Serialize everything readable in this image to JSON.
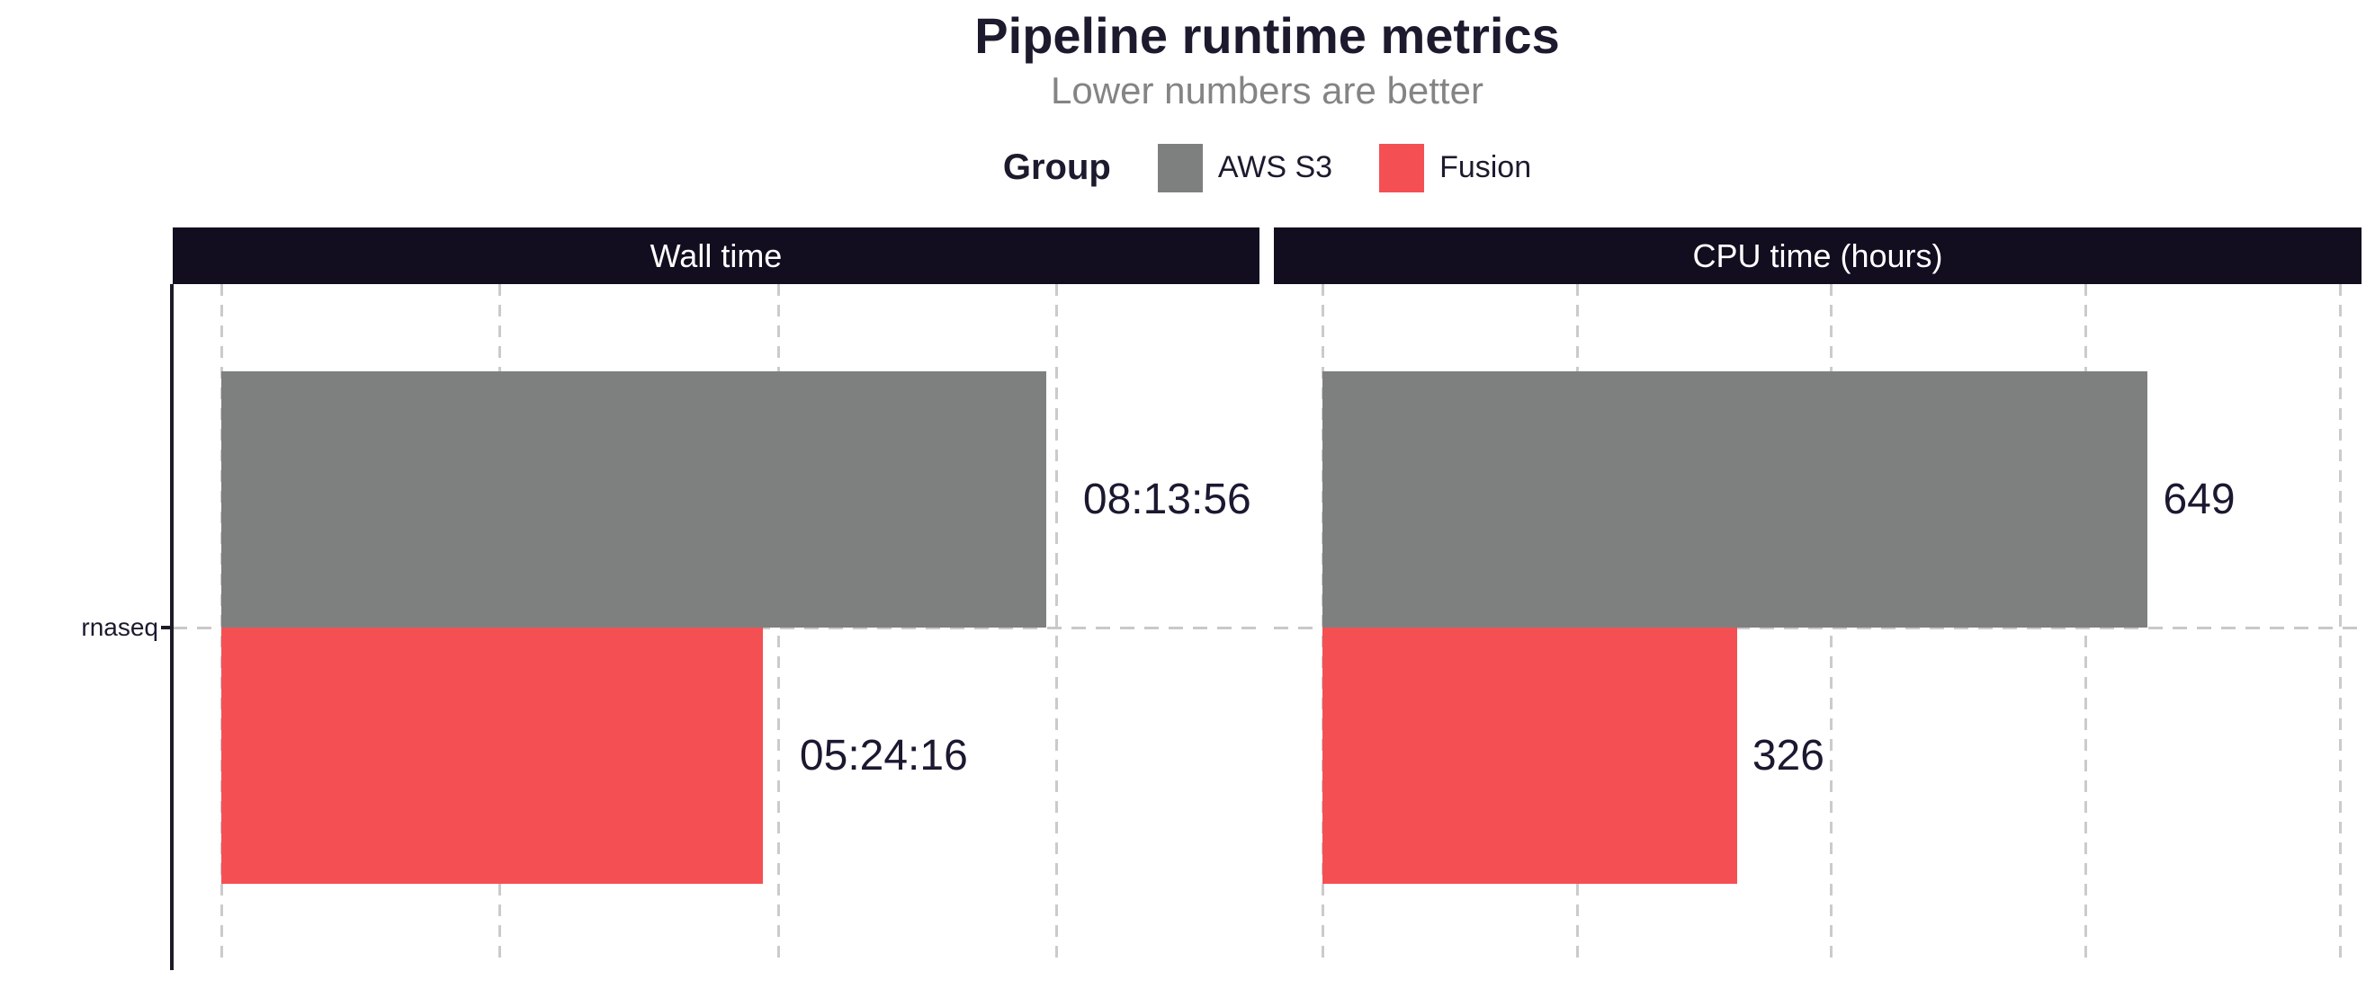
{
  "title": "Pipeline runtime metrics",
  "subtitle": "Lower numbers are better",
  "legend": {
    "title": "Group",
    "items": [
      {
        "label": "AWS S3",
        "color": "#7E807F"
      },
      {
        "label": "Fusion",
        "color": "#F45053"
      }
    ]
  },
  "colors": {
    "aws_s3_bar": "#7E807F",
    "fusion_bar": "#F45053",
    "panel_header_bg": "#120D1F",
    "panel_header_text": "#FFFFFF",
    "gridline": "#CBCBCB",
    "axis_line": "#1C1B28",
    "title_text": "#1D1A2E",
    "subtitle_text": "#848484",
    "value_label_text": "#1B1830"
  },
  "y_axis": {
    "category_label": "rnaseq"
  },
  "chart_data": {
    "type": "bar",
    "orientation": "horizontal",
    "categories": [
      "rnaseq"
    ],
    "grid": "dashed-vertical-major",
    "legend_position": "top-center",
    "facets": [
      {
        "title": "Wall time",
        "unit": "seconds",
        "xlim": [
          0,
          37300
        ],
        "gridline_values": [
          0,
          10000,
          20000,
          30000
        ],
        "series": [
          {
            "name": "AWS S3",
            "category": "rnaseq",
            "value": 29636,
            "label": "08:13:56",
            "color": "#7E807F"
          },
          {
            "name": "Fusion",
            "category": "rnaseq",
            "value": 19456,
            "label": "05:24:16",
            "color": "#F45053"
          }
        ]
      },
      {
        "title": "CPU time (hours)",
        "unit": "hours",
        "xlim": [
          0,
          817
        ],
        "gridline_values": [
          0,
          200,
          400,
          600,
          800
        ],
        "series": [
          {
            "name": "AWS S3",
            "category": "rnaseq",
            "value": 649,
            "label": "649",
            "color": "#7E807F"
          },
          {
            "name": "Fusion",
            "category": "rnaseq",
            "value": 326,
            "label": "326",
            "color": "#F45053"
          }
        ]
      }
    ]
  }
}
